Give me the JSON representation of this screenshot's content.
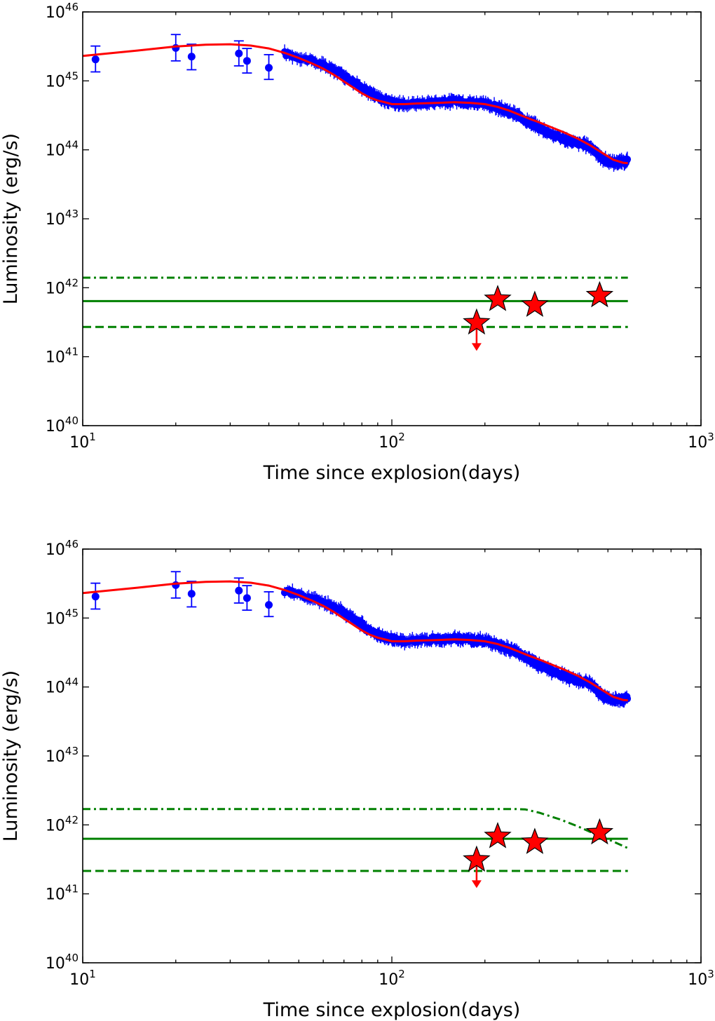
{
  "chart_data": [
    {
      "type": "line",
      "panel": "top",
      "title": "",
      "xlabel": "Time since explosion(days)",
      "ylabel": "Luminosity (erg/s)",
      "xscale": "log",
      "yscale": "log",
      "xlim": [
        10,
        1000
      ],
      "ylim": [
        1e+40,
        1e+46
      ],
      "grid": false,
      "x_tick_labels": [
        {
          "base": "10",
          "exp": "1",
          "value": 10
        },
        {
          "base": "10",
          "exp": "2",
          "value": 100
        },
        {
          "base": "10",
          "exp": "3",
          "value": 1000
        }
      ],
      "y_tick_labels": [
        {
          "base": "10",
          "exp": "40",
          "value": 1e+40
        },
        {
          "base": "10",
          "exp": "41",
          "value": 1e+41
        },
        {
          "base": "10",
          "exp": "42",
          "value": 1e+42
        },
        {
          "base": "10",
          "exp": "43",
          "value": 1e+43
        },
        {
          "base": "10",
          "exp": "44",
          "value": 1e+44
        },
        {
          "base": "10",
          "exp": "45",
          "value": 1e+45
        },
        {
          "base": "10",
          "exp": "46",
          "value": 1e+46
        }
      ],
      "series": [
        {
          "name": "Observed luminosity",
          "kind": "errorbar",
          "color": "#0000ff",
          "x": [
            11,
            20,
            22.5,
            32,
            34,
            40
          ],
          "y": [
            2.05e+45,
            3e+45,
            2.25e+45,
            2.5e+45,
            1.95e+45,
            1.55e+45
          ],
          "yerr_low": [
            1.35e+45,
            1.95e+45,
            1.45e+45,
            1.65e+45,
            1.3e+45,
            1.05e+45
          ],
          "yerr_high": [
            3.2e+45,
            4.7e+45,
            3.4e+45,
            3.8e+45,
            2.95e+45,
            2.4e+45
          ]
        },
        {
          "name": "Observed luminosity (dense)",
          "kind": "dense-band",
          "color": "#0000ff",
          "x": [
            45,
            50,
            55,
            60,
            65,
            70,
            75,
            80,
            85,
            90,
            95,
            100,
            105,
            110,
            120,
            130,
            140,
            150,
            160,
            170,
            180,
            190,
            200,
            210,
            220,
            230,
            240,
            250,
            260,
            270,
            280,
            290,
            300,
            320,
            340,
            360,
            380,
            400,
            420,
            440,
            460,
            480,
            500,
            520,
            540,
            560,
            580
          ],
          "y": [
            2.5e+45,
            2.2e+45,
            1.95e+45,
            1.7e+45,
            1.45e+45,
            1.2e+45,
            9.8e+44,
            8e+44,
            6.7e+44,
            5.8e+44,
            5.2e+44,
            5e+44,
            4.7e+44,
            4.6e+44,
            4.7e+44,
            4.8e+44,
            5e+44,
            4.9e+44,
            5.1e+44,
            5e+44,
            4.9e+44,
            4.8e+44,
            4.6e+44,
            4.4e+44,
            4.1e+44,
            3.8e+44,
            3.5e+44,
            3.3e+44,
            3e+44,
            2.7e+44,
            2.5e+44,
            2.3e+44,
            2.1e+44,
            1.8e+44,
            1.6e+44,
            1.45e+44,
            1.3e+44,
            1.25e+44,
            1.2e+44,
            1.1e+44,
            9e+43,
            7.5e+43,
            6.8e+43,
            6.5e+43,
            6.7e+43,
            6.6e+43,
            7e+43
          ]
        },
        {
          "name": "Model fit",
          "kind": "line",
          "color": "#ff0000",
          "x": [
            10,
            15,
            20,
            25,
            30,
            35,
            40,
            45,
            50,
            55,
            60,
            65,
            70,
            75,
            80,
            85,
            90,
            95,
            100,
            110,
            120,
            140,
            160,
            180,
            200,
            220,
            240,
            260,
            280,
            300,
            330,
            360,
            400,
            440,
            480,
            520,
            560,
            580
          ],
          "y": [
            2.3e+45,
            2.75e+45,
            3.15e+45,
            3.35e+45,
            3.4e+45,
            3.25e+45,
            2.95e+45,
            2.55e+45,
            2.15e+45,
            1.8e+45,
            1.5e+45,
            1.22e+45,
            9.8e+44,
            8e+44,
            6.6e+44,
            5.7e+44,
            5.2e+44,
            4.9e+44,
            4.6e+44,
            4.6e+44,
            4.7e+44,
            4.8e+44,
            4.9e+44,
            4.8e+44,
            4.6e+44,
            4.2e+44,
            3.7e+44,
            3.2e+44,
            2.8e+44,
            2.5e+44,
            2.1e+44,
            1.8e+44,
            1.45e+44,
            1.15e+44,
            9e+43,
            7.2e+43,
            6.5e+43,
            6.4e+43
          ]
        },
        {
          "name": "Upper bound",
          "kind": "line",
          "style": "dashdot",
          "color": "#008000",
          "x": [
            10,
            580
          ],
          "y": [
            1.4e+42,
            1.4e+42
          ]
        },
        {
          "name": "Central value",
          "kind": "line",
          "style": "solid",
          "color": "#008000",
          "x": [
            10,
            580
          ],
          "y": [
            6.4e+41,
            6.4e+41
          ]
        },
        {
          "name": "Lower bound",
          "kind": "line",
          "style": "dashed",
          "color": "#008000",
          "x": [
            10,
            580
          ],
          "y": [
            2.7e+41,
            2.7e+41
          ]
        },
        {
          "name": "Detections",
          "kind": "star-markers",
          "color": "#ff0000",
          "x": [
            188,
            220,
            290,
            470
          ],
          "y": [
            3.1e+41,
            6.8e+41,
            5.6e+41,
            7.7e+41
          ],
          "upper_limit": [
            true,
            false,
            false,
            false
          ]
        }
      ]
    },
    {
      "type": "line",
      "panel": "bottom",
      "title": "",
      "xlabel": "Time since explosion(days)",
      "ylabel": "Luminosity (erg/s)",
      "xscale": "log",
      "yscale": "log",
      "xlim": [
        10,
        1000
      ],
      "ylim": [
        1e+40,
        1e+46
      ],
      "grid": false,
      "x_tick_labels": [
        {
          "base": "10",
          "exp": "1",
          "value": 10
        },
        {
          "base": "10",
          "exp": "2",
          "value": 100
        },
        {
          "base": "10",
          "exp": "3",
          "value": 1000
        }
      ],
      "y_tick_labels": [
        {
          "base": "10",
          "exp": "40",
          "value": 1e+40
        },
        {
          "base": "10",
          "exp": "41",
          "value": 1e+41
        },
        {
          "base": "10",
          "exp": "42",
          "value": 1e+42
        },
        {
          "base": "10",
          "exp": "43",
          "value": 1e+43
        },
        {
          "base": "10",
          "exp": "44",
          "value": 1e+44
        },
        {
          "base": "10",
          "exp": "45",
          "value": 1e+45
        },
        {
          "base": "10",
          "exp": "46",
          "value": 1e+46
        }
      ],
      "series": [
        {
          "name": "Observed luminosity",
          "kind": "errorbar",
          "color": "#0000ff",
          "x": [
            11,
            20,
            22.5,
            32,
            34,
            40
          ],
          "y": [
            2.05e+45,
            3e+45,
            2.25e+45,
            2.5e+45,
            1.95e+45,
            1.55e+45
          ],
          "yerr_low": [
            1.35e+45,
            1.95e+45,
            1.45e+45,
            1.65e+45,
            1.3e+45,
            1.05e+45
          ],
          "yerr_high": [
            3.2e+45,
            4.7e+45,
            3.4e+45,
            3.8e+45,
            2.95e+45,
            2.4e+45
          ]
        },
        {
          "name": "Observed luminosity (dense)",
          "kind": "dense-band",
          "color": "#0000ff",
          "x": [
            45,
            50,
            55,
            60,
            65,
            70,
            75,
            80,
            85,
            90,
            95,
            100,
            105,
            110,
            120,
            130,
            140,
            150,
            160,
            170,
            180,
            190,
            200,
            210,
            220,
            230,
            240,
            250,
            260,
            270,
            280,
            290,
            300,
            320,
            340,
            360,
            380,
            400,
            420,
            440,
            460,
            480,
            500,
            520,
            540,
            560,
            580
          ],
          "y": [
            2.5e+45,
            2.2e+45,
            1.95e+45,
            1.7e+45,
            1.45e+45,
            1.2e+45,
            9.8e+44,
            8e+44,
            6.7e+44,
            5.8e+44,
            5.2e+44,
            5e+44,
            4.7e+44,
            4.6e+44,
            4.7e+44,
            4.8e+44,
            5e+44,
            4.9e+44,
            5.1e+44,
            5e+44,
            4.9e+44,
            4.8e+44,
            4.6e+44,
            4.4e+44,
            4.1e+44,
            3.8e+44,
            3.5e+44,
            3.3e+44,
            3e+44,
            2.7e+44,
            2.5e+44,
            2.3e+44,
            2.1e+44,
            1.8e+44,
            1.6e+44,
            1.45e+44,
            1.3e+44,
            1.25e+44,
            1.2e+44,
            1.1e+44,
            9e+43,
            7.5e+43,
            6.8e+43,
            6.5e+43,
            6.7e+43,
            6.6e+43,
            7e+43
          ]
        },
        {
          "name": "Model fit",
          "kind": "line",
          "color": "#ff0000",
          "x": [
            10,
            15,
            20,
            25,
            30,
            35,
            40,
            45,
            50,
            55,
            60,
            65,
            70,
            75,
            80,
            85,
            90,
            95,
            100,
            110,
            120,
            140,
            160,
            180,
            200,
            220,
            240,
            260,
            280,
            300,
            330,
            360,
            400,
            440,
            480,
            520,
            560,
            580
          ],
          "y": [
            2.3e+45,
            2.75e+45,
            3.15e+45,
            3.35e+45,
            3.4e+45,
            3.25e+45,
            2.95e+45,
            2.55e+45,
            2.15e+45,
            1.8e+45,
            1.5e+45,
            1.22e+45,
            9.8e+44,
            8e+44,
            6.6e+44,
            5.7e+44,
            5.2e+44,
            4.9e+44,
            4.6e+44,
            4.6e+44,
            4.7e+44,
            4.8e+44,
            4.9e+44,
            4.8e+44,
            4.6e+44,
            4.2e+44,
            3.7e+44,
            3.2e+44,
            2.8e+44,
            2.5e+44,
            2.1e+44,
            1.8e+44,
            1.45e+44,
            1.15e+44,
            9e+43,
            7.2e+43,
            6.5e+43,
            6.4e+43
          ]
        },
        {
          "name": "Upper bound",
          "kind": "line",
          "style": "dashdot",
          "color": "#008000",
          "x": [
            10,
            100,
            200,
            250,
            270,
            300,
            350,
            400,
            450,
            500,
            580
          ],
          "y": [
            1.7e+42,
            1.7e+42,
            1.7e+42,
            1.7e+42,
            1.68e+42,
            1.5e+42,
            1.2e+42,
            9.5e+41,
            7.5e+41,
            6.2e+41,
            4.6e+41
          ]
        },
        {
          "name": "Central value",
          "kind": "line",
          "style": "solid",
          "color": "#008000",
          "x": [
            10,
            580
          ],
          "y": [
            6.3e+41,
            6.3e+41
          ]
        },
        {
          "name": "Lower bound",
          "kind": "line",
          "style": "dashed",
          "color": "#008000",
          "x": [
            10,
            580
          ],
          "y": [
            2.15e+41,
            2.15e+41
          ]
        },
        {
          "name": "Detections",
          "kind": "star-markers",
          "color": "#ff0000",
          "x": [
            188,
            220,
            290,
            470
          ],
          "y": [
            3.1e+41,
            6.8e+41,
            5.6e+41,
            7.7e+41
          ],
          "upper_limit": [
            true,
            false,
            false,
            false
          ]
        }
      ]
    }
  ]
}
